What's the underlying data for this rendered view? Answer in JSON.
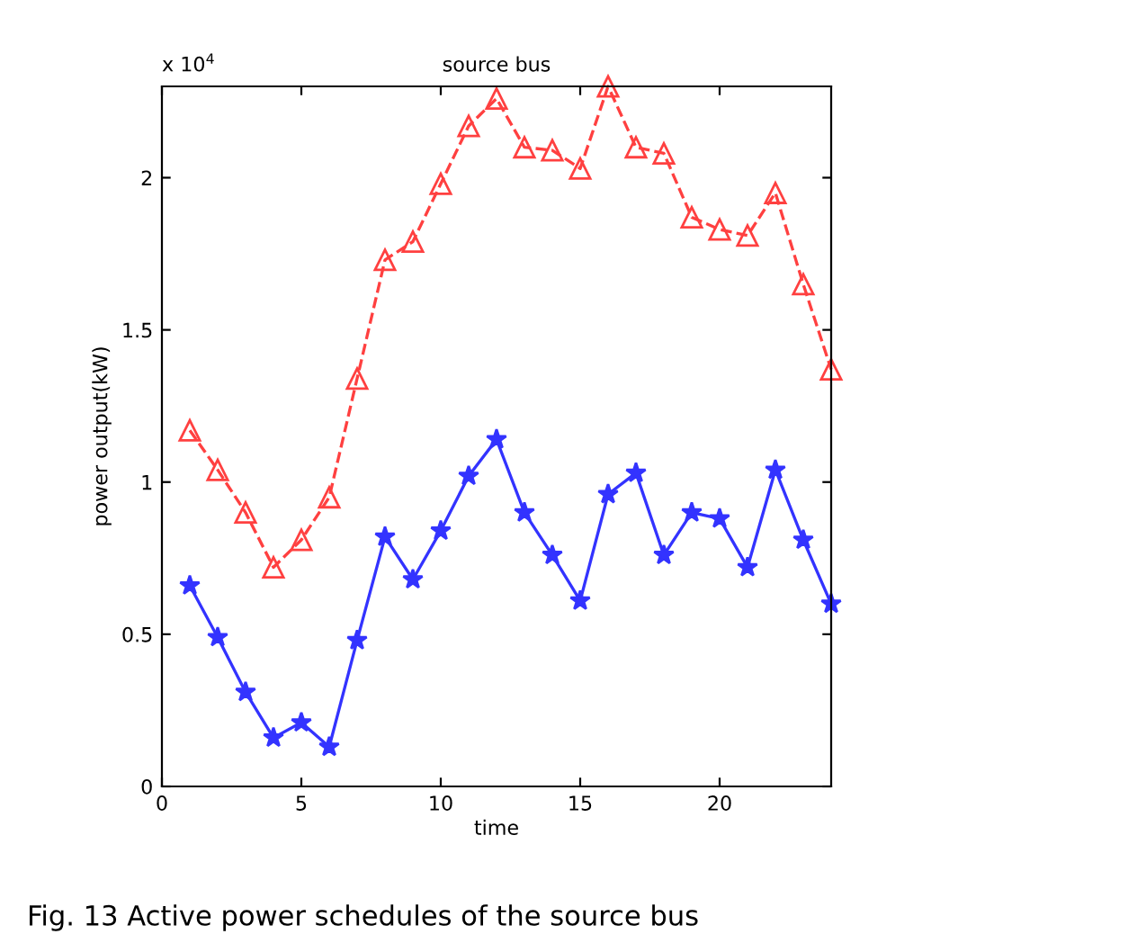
{
  "chart_data": {
    "type": "line",
    "title": "source bus",
    "xlabel": "time",
    "ylabel": "power output(kW)",
    "x": [
      1,
      2,
      3,
      4,
      5,
      6,
      7,
      8,
      9,
      10,
      11,
      12,
      13,
      14,
      15,
      16,
      17,
      18,
      19,
      20,
      21,
      22,
      23,
      24
    ],
    "series": [
      {
        "color": "#ff4040",
        "marker": "triangle",
        "line_style": "dashed",
        "values": [
          1.17,
          1.04,
          0.9,
          0.72,
          0.81,
          0.95,
          1.34,
          1.73,
          1.79,
          1.98,
          2.17,
          2.26,
          2.1,
          2.09,
          2.03,
          2.3,
          2.1,
          2.08,
          1.87,
          1.83,
          1.81,
          1.95,
          1.65,
          1.37
        ]
      },
      {
        "color": "#3333ff",
        "marker": "star",
        "line_style": "solid",
        "values": [
          0.66,
          0.49,
          0.31,
          0.16,
          0.21,
          0.13,
          0.48,
          0.82,
          0.68,
          0.84,
          1.02,
          1.14,
          0.9,
          0.76,
          0.61,
          0.96,
          1.03,
          0.76,
          0.9,
          0.88,
          0.72,
          1.04,
          0.81,
          0.6
        ]
      }
    ],
    "xlim": [
      0,
      24
    ],
    "xticks": [
      0,
      5,
      10,
      15,
      20
    ],
    "ylim": [
      0,
      2.3
    ],
    "yticks": [
      0,
      0.5,
      1,
      1.5,
      2
    ],
    "grid": false,
    "annotations": [
      "x 10$^{4}$",
      "Fig. 13 Active power schedules of the source bus"
    ]
  }
}
